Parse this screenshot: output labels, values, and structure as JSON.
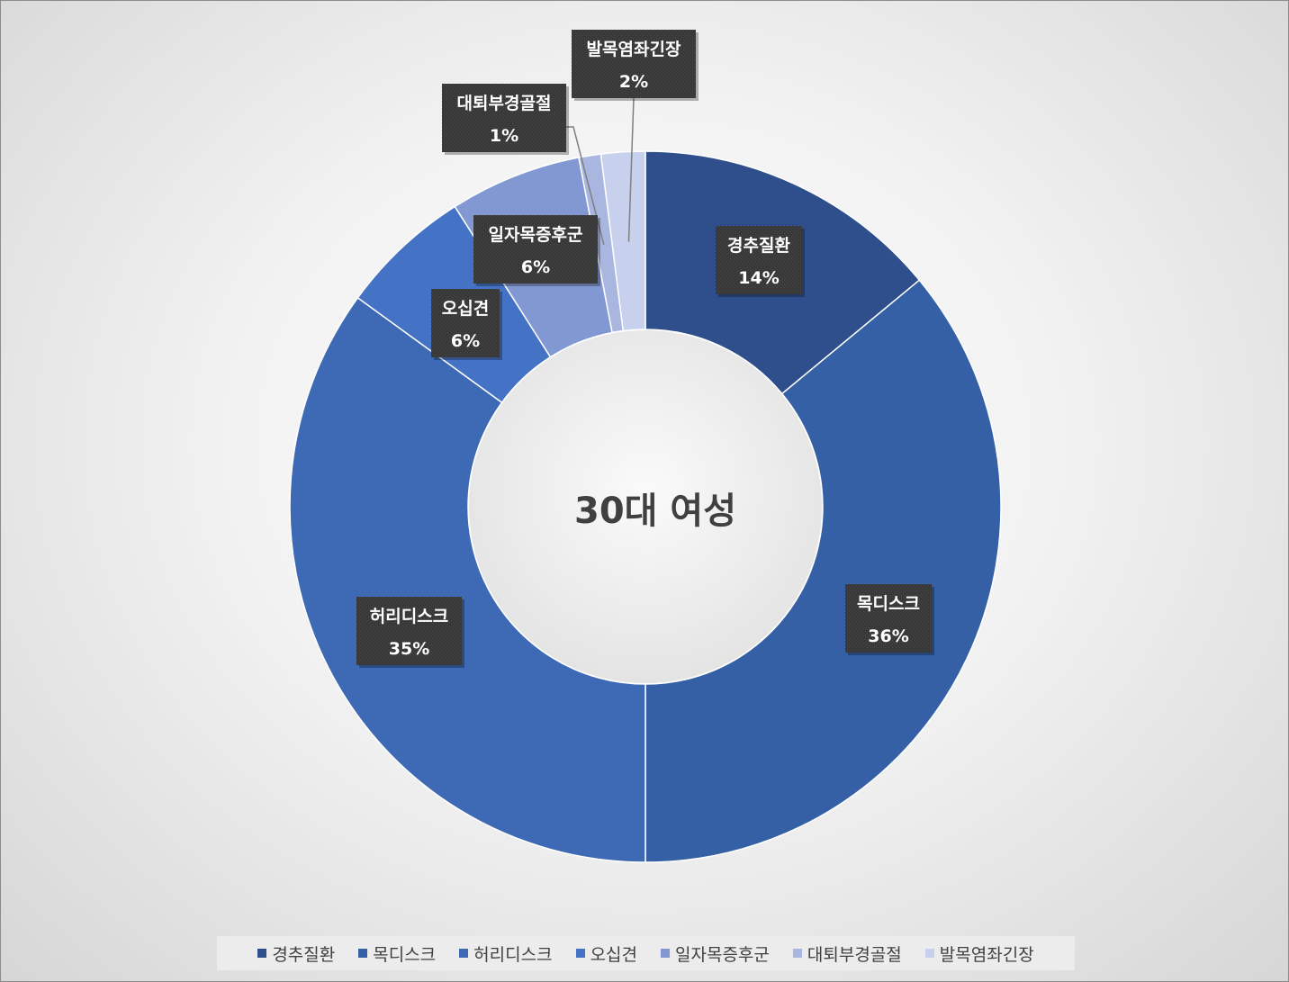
{
  "chart_data": {
    "type": "pie",
    "donut": true,
    "title": "30대 여성",
    "categories": [
      "경추질환",
      "목디스크",
      "허리디스크",
      "오십견",
      "일자목증후군",
      "대퇴부경골절",
      "발목염좌긴장"
    ],
    "values": [
      14,
      36,
      35,
      6,
      6,
      1,
      2
    ],
    "value_labels": [
      "14%",
      "36%",
      "35%",
      "6%",
      "6%",
      "1%",
      "2%"
    ],
    "colors": [
      "#2e4f8c",
      "#3560a6",
      "#3d69b5",
      "#4472c4",
      "#8298d2",
      "#a8b6e0",
      "#c7d0ec"
    ],
    "legend_position": "bottom"
  }
}
